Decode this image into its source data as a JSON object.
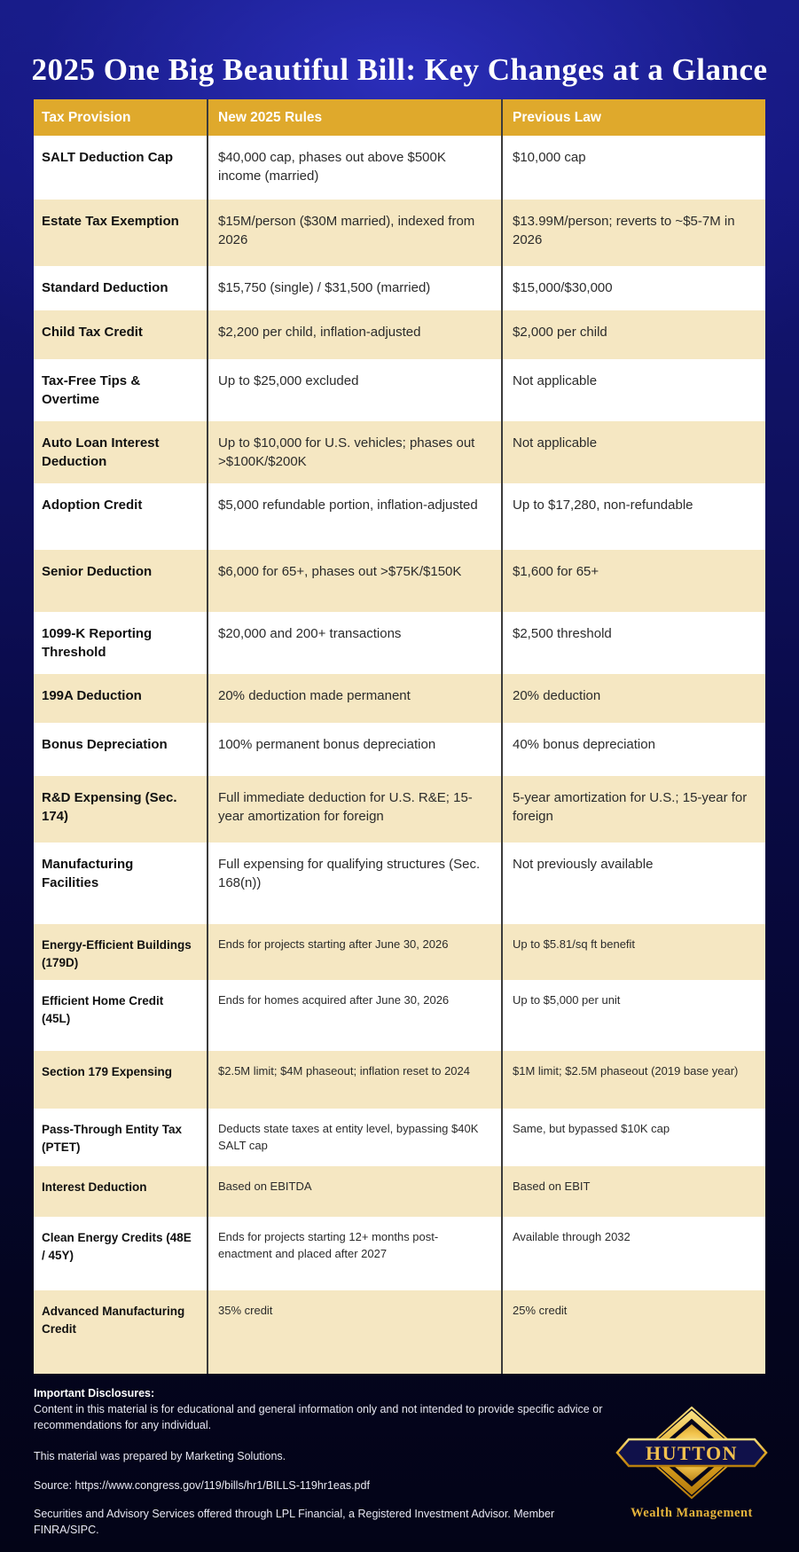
{
  "page": {
    "title": "2025 One Big Beautiful Bill: Key Changes at a Glance"
  },
  "table": {
    "columns": [
      "Tax Provision",
      "New 2025 Rules",
      "Previous Law"
    ],
    "rows": [
      {
        "provision": "SALT Deduction Cap",
        "new_rules": "$40,000 cap, phases out above $500K income (married)",
        "previous_law": "$10,000 cap"
      },
      {
        "provision": "Estate Tax Exemption",
        "new_rules": "$15M/person ($30M married), indexed from 2026",
        "previous_law": "$13.99M/person; reverts to ~$5-7M in 2026"
      },
      {
        "provision": "Standard Deduction",
        "new_rules": "$15,750 (single) / $31,500 (married)",
        "previous_law": "$15,000/$30,000"
      },
      {
        "provision": "Child Tax Credit",
        "new_rules": "$2,200 per child, inflation-adjusted",
        "previous_law": "$2,000 per child"
      },
      {
        "provision": "Tax-Free Tips & Overtime",
        "new_rules": "Up to $25,000 excluded",
        "previous_law": "Not applicable"
      },
      {
        "provision": "Auto Loan Interest Deduction",
        "new_rules": "Up to $10,000 for U.S. vehicles; phases out >$100K/$200K",
        "previous_law": "Not applicable"
      },
      {
        "provision": "Adoption Credit",
        "new_rules": "$5,000 refundable portion, inflation-adjusted",
        "previous_law": "Up to $17,280, non-refundable"
      },
      {
        "provision": "Senior Deduction",
        "new_rules": "$6,000 for 65+, phases out >$75K/$150K",
        "previous_law": "$1,600 for 65+"
      },
      {
        "provision": "1099-K Reporting Threshold",
        "new_rules": "$20,000 and 200+ transactions",
        "previous_law": "$2,500 threshold"
      },
      {
        "provision": "199A Deduction",
        "new_rules": "20% deduction made permanent",
        "previous_law": "20% deduction"
      },
      {
        "provision": "Bonus Depreciation",
        "new_rules": "100% permanent bonus depreciation",
        "previous_law": "40% bonus depreciation"
      },
      {
        "provision": "R&D Expensing (Sec. 174)",
        "new_rules": "Full immediate deduction for U.S. R&E; 15-year amortization for foreign",
        "previous_law": "5-year amortization for U.S.; 15-year for foreign"
      },
      {
        "provision": "Manufacturing Facilities",
        "new_rules": "Full expensing for qualifying structures (Sec. 168(n))",
        "previous_law": "Not previously available"
      },
      {
        "provision": "Energy-Efficient Buildings (179D)",
        "new_rules": "Ends for projects starting after June 30, 2026",
        "previous_law": "Up to $5.81/sq ft benefit"
      },
      {
        "provision": "Efficient Home Credit (45L)",
        "new_rules": "Ends for homes acquired after June 30, 2026",
        "previous_law": "Up to $5,000 per unit"
      },
      {
        "provision": "Section 179 Expensing",
        "new_rules": "$2.5M limit; $4M phaseout; inflation reset to 2024",
        "previous_law": "$1M limit; $2.5M phaseout (2019 base year)"
      },
      {
        "provision": "Pass-Through Entity Tax (PTET)",
        "new_rules": "Deducts state taxes at entity level, bypassing $40K SALT cap",
        "previous_law": "Same, but bypassed $10K cap"
      },
      {
        "provision": "Interest Deduction",
        "new_rules": "Based on EBITDA",
        "previous_law": "Based on EBIT"
      },
      {
        "provision": "Clean Energy Credits (48E / 45Y)",
        "new_rules": "Ends for projects starting 12+ months post-enactment and placed after 2027",
        "previous_law": "Available through 2032"
      },
      {
        "provision": "Advanced Manufacturing Credit",
        "new_rules": "35% credit",
        "previous_law": "25% credit"
      }
    ]
  },
  "footer": {
    "disclosures_heading": "Important Disclosures:",
    "disclosure_text": "Content in this material is for educational and general information only and not intended to provide specific advice or recommendations for any individual.",
    "prepared_by": "This material was prepared by Marketing Solutions.",
    "source": "Source: https://www.congress.gov/119/bills/hr1/BILLS-119hr1eas.pdf",
    "lpl_disclosure": "Securities and Advisory Services offered through LPL Financial, a Registered Investment Advisor. Member FINRA/SIPC."
  },
  "logo": {
    "name": "HUTTON",
    "tagline": "Wealth Management"
  },
  "colors": {
    "header_gold": "#DFA92C",
    "row_cream": "#F5E7C2",
    "row_white": "#FFFFFF",
    "divider_dark": "#3B3B3B",
    "background_top_blue": "#151A84",
    "background_bottom_navy": "#030417",
    "logo_gold": "#E5B43B",
    "title_white": "#FFFFFF"
  }
}
